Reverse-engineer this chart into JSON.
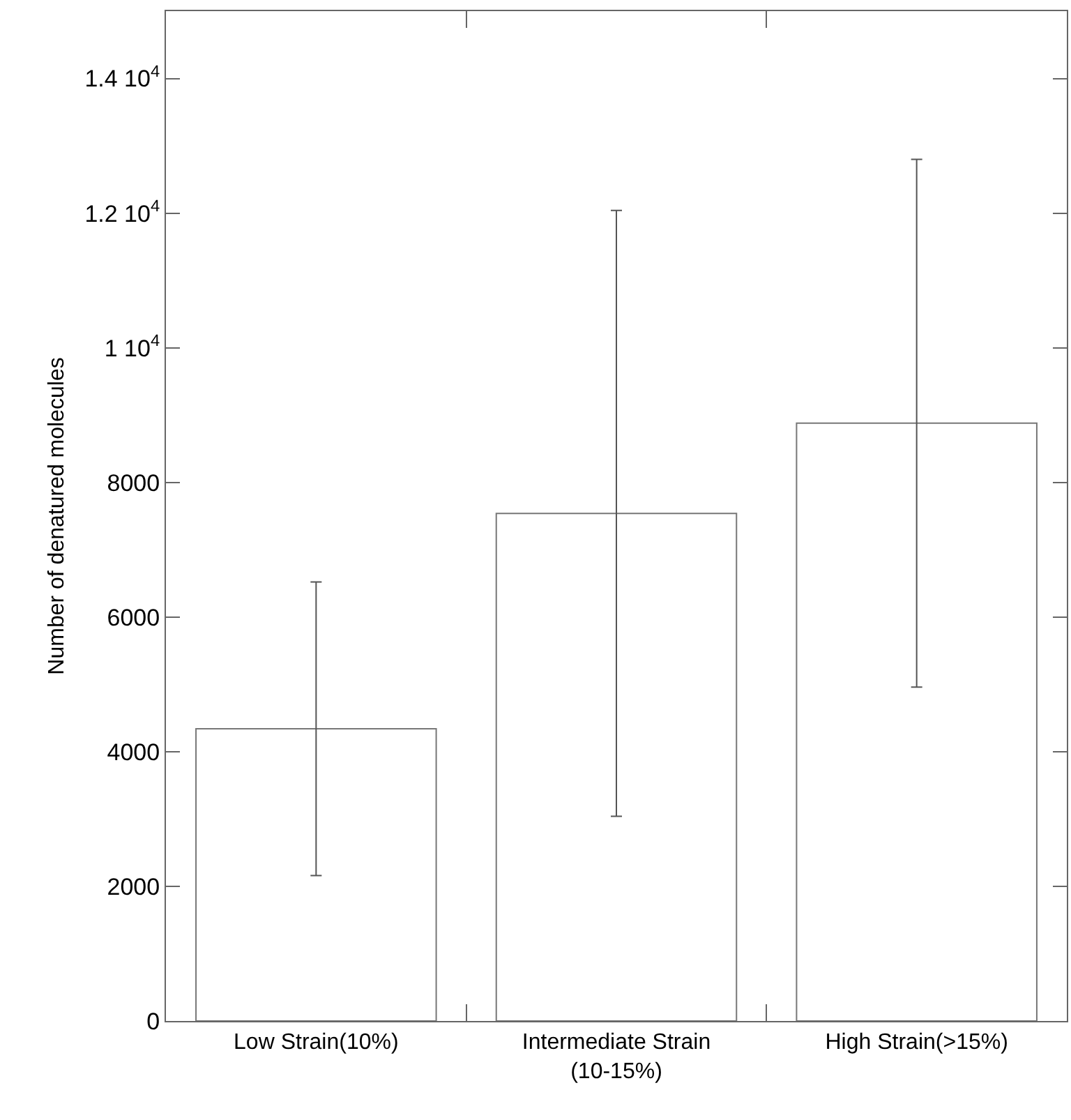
{
  "chart_data": {
    "type": "bar",
    "ylabel": "Number of denatured molecules",
    "categories": [
      "Low Strain(10%)",
      "Intermediate Strain\n(10-15%)",
      "High Strain(>15%)"
    ],
    "values": [
      4340,
      7540,
      8880
    ],
    "errors": [
      2180,
      4500,
      3920
    ],
    "color": "#ffffff",
    "ylim": [
      0,
      15000
    ],
    "yticks": [
      0,
      2000,
      4000,
      6000,
      8000,
      {
        "value": 10000,
        "label": "1 10$^{4}$"
      },
      {
        "value": 12000,
        "label": "1.2 10$^{4}$"
      },
      {
        "value": 14000,
        "label": "1.4 10$^{4}$"
      }
    ]
  }
}
